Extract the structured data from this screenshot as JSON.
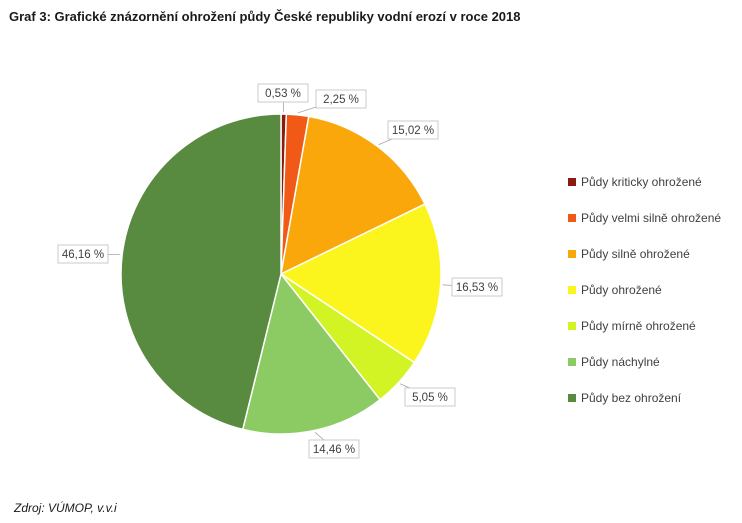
{
  "header": {
    "title": "Graf 3: Grafické znázornění ohrožení půdy České republiky vodní erozí v roce 2018"
  },
  "footer": {
    "source": "Zdroj: VÚMOP, v.v.i"
  },
  "chart_data": {
    "type": "pie",
    "title": "Graf 3: Grafické znázornění ohrožení půdy České republiky vodní erozí v roce 2018",
    "categories": [
      "Půdy kriticky ohrožené",
      "Půdy velmi silně ohrožené",
      "Půdy silně ohrožené",
      "Půdy ohrožené",
      "Půdy mírně ohrožené",
      "Půdy náchylné",
      "Půdy bez ohrožení"
    ],
    "values": [
      0.53,
      2.25,
      15.02,
      16.53,
      5.05,
      14.46,
      46.16
    ],
    "labels": [
      "0,53 %",
      "2,25 %",
      "15,02 %",
      "16,53 %",
      "5,05 %",
      "14,46 %",
      "46,16 %"
    ],
    "colors": [
      "#8B1A10",
      "#F05A16",
      "#F9A70B",
      "#FBF51D",
      "#D2F424",
      "#8CCB63",
      "#588A3F"
    ],
    "start_angle_deg": 0,
    "direction": "clockwise",
    "legend_position": "right"
  }
}
